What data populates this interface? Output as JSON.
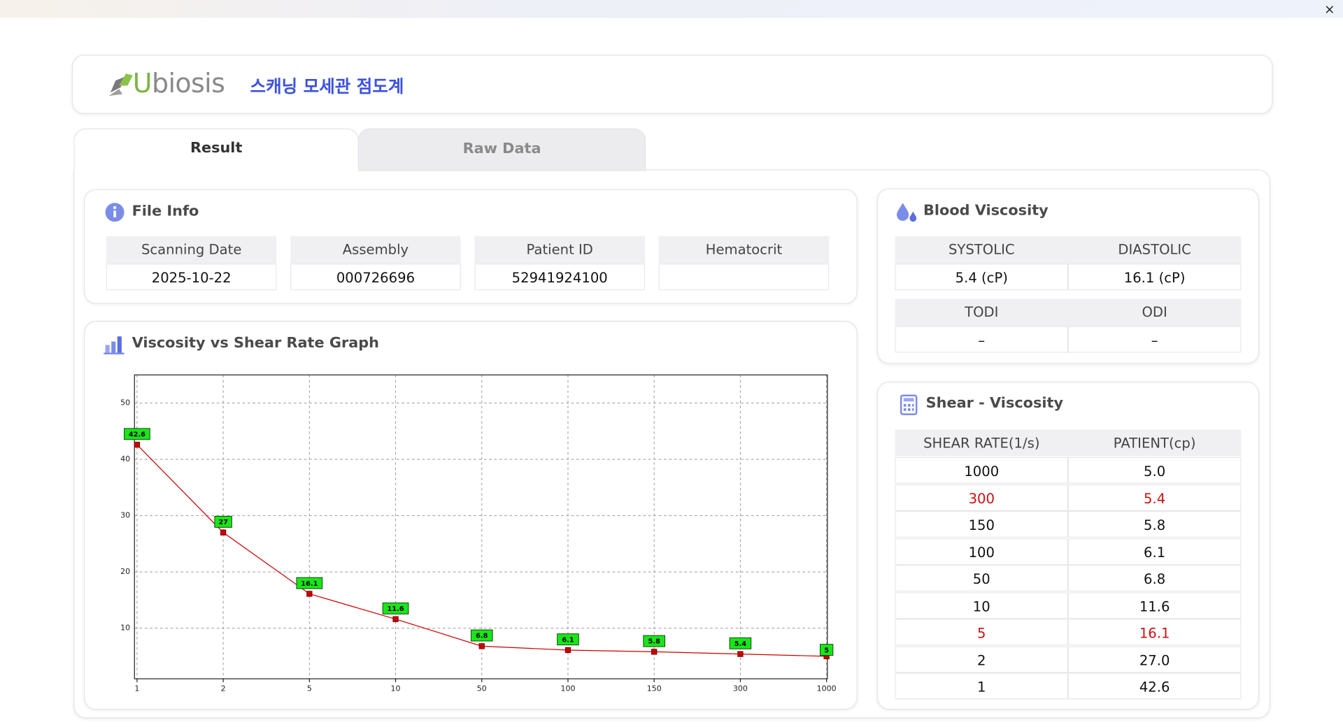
{
  "window": {
    "close": "×"
  },
  "header": {
    "logo": "Ubiosis",
    "title": "스캐닝 모세관 점도계"
  },
  "tabs": [
    "Result",
    "Raw Data"
  ],
  "file_info": {
    "title": "File Info",
    "columns": [
      {
        "label": "Scanning Date",
        "value": "2025-10-22"
      },
      {
        "label": "Assembly",
        "value": "000726696"
      },
      {
        "label": "Patient ID",
        "value": "52941924100"
      },
      {
        "label": "Hematocrit"
      }
    ]
  },
  "blood_viscosity": {
    "title": "Blood Viscosity",
    "rows": [
      [
        {
          "label": "SYSTOLIC",
          "value": "5.4 (cP)"
        },
        {
          "label": "DIASTOLIC",
          "value": "16.1 (cP)"
        }
      ],
      [
        {
          "label": "TODI",
          "value": "–"
        },
        {
          "label": "ODI",
          "value": "–"
        }
      ]
    ]
  },
  "shear_viscosity": {
    "title": "Shear - Viscosity",
    "columns": [
      "SHEAR RATE(1/s)",
      "PATIENT(cp)"
    ],
    "rows": [
      {
        "cells": [
          "1000",
          "5.0"
        ]
      },
      {
        "cells": [
          "300",
          "5.4"
        ],
        "color": "#cc1111"
      },
      {
        "cells": [
          "150",
          "5.8"
        ]
      },
      {
        "cells": [
          "100",
          "6.1"
        ]
      },
      {
        "cells": [
          "50",
          "6.8"
        ]
      },
      {
        "cells": [
          "10",
          "11.6"
        ]
      },
      {
        "cells": [
          "5",
          "16.1"
        ],
        "color": "#cc1111"
      },
      {
        "cells": [
          "2",
          "27.0"
        ]
      },
      {
        "cells": [
          "1",
          "42.6"
        ]
      }
    ]
  },
  "chart_data": {
    "type": "line",
    "title": "Viscosity vs Shear Rate Graph",
    "categories": [
      "1",
      "2",
      "5",
      "10",
      "50",
      "100",
      "150",
      "300",
      "1000"
    ],
    "values": [
      42.6,
      27,
      16.1,
      11.6,
      6.8,
      6.1,
      5.8,
      5.4,
      5
    ],
    "color": "#cc0000",
    "label_color": "#19e619",
    "ylim": [
      1,
      55
    ],
    "yticks": [
      10,
      20,
      30,
      40,
      50
    ],
    "grid": true
  }
}
